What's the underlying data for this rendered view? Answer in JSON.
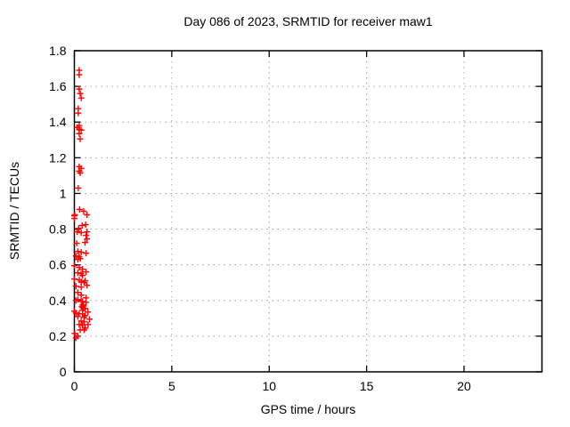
{
  "colors": {
    "marker": "#ff0000",
    "grid": "#a0a0a0",
    "axis": "#000000",
    "text": "#000000",
    "background": "#ffffff"
  },
  "chart_data": {
    "type": "scatter",
    "title": "Day 086 of 2023, SRMTID for receiver maw1",
    "xlabel": "GPS time / hours",
    "ylabel": "SRMTID / TECUs",
    "xlim": [
      0,
      24
    ],
    "ylim": [
      0,
      1.8
    ],
    "xticks": [
      0,
      5,
      10,
      15,
      20
    ],
    "xticklabels": [
      "0",
      "5",
      "10",
      "15",
      "20"
    ],
    "yticks": [
      0,
      0.2,
      0.4,
      0.6,
      0.8,
      1.0,
      1.2,
      1.4,
      1.6,
      1.8
    ],
    "yticklabels": [
      "0",
      "0.2",
      "0.4",
      "0.6",
      "0.8",
      "1",
      "1.2",
      "1.4",
      "1.6",
      "1.8"
    ],
    "grid": true,
    "legend_position": "none",
    "marker": "plus",
    "series": [
      {
        "name": "SRMTID",
        "color": "#ff0000",
        "points": [
          [
            0.25,
            1.69
          ],
          [
            0.25,
            1.665
          ],
          [
            0.25,
            1.585
          ],
          [
            0.3,
            1.56
          ],
          [
            0.35,
            1.535
          ],
          [
            0.2,
            1.475
          ],
          [
            0.2,
            1.45
          ],
          [
            0.25,
            1.38
          ],
          [
            0.15,
            1.37
          ],
          [
            0.25,
            1.36
          ],
          [
            0.35,
            1.355
          ],
          [
            0.25,
            1.335
          ],
          [
            0.3,
            1.305
          ],
          [
            0.25,
            1.15
          ],
          [
            0.35,
            1.14
          ],
          [
            0.25,
            1.125
          ],
          [
            0.3,
            1.115
          ],
          [
            0.2,
            1.03
          ],
          [
            0.27,
            0.91
          ],
          [
            0.48,
            0.9
          ],
          [
            0.65,
            0.88
          ],
          [
            0.02,
            0.88
          ],
          [
            0.0,
            0.875
          ],
          [
            0.0,
            0.86
          ],
          [
            0.58,
            0.825
          ],
          [
            0.4,
            0.82
          ],
          [
            0.22,
            0.805
          ],
          [
            0.14,
            0.785
          ],
          [
            0.65,
            0.785
          ],
          [
            0.35,
            0.78
          ],
          [
            0.6,
            0.765
          ],
          [
            0.65,
            0.745
          ],
          [
            0.55,
            0.725
          ],
          [
            0.12,
            0.72
          ],
          [
            0.18,
            0.675
          ],
          [
            0.35,
            0.67
          ],
          [
            0.6,
            0.665
          ],
          [
            0.08,
            0.65
          ],
          [
            0.25,
            0.645
          ],
          [
            0.3,
            0.635
          ],
          [
            0.18,
            0.63
          ],
          [
            0.0,
            0.595
          ],
          [
            0.25,
            0.585
          ],
          [
            0.42,
            0.575
          ],
          [
            0.6,
            0.56
          ],
          [
            0.18,
            0.555
          ],
          [
            0.35,
            0.55
          ],
          [
            0.42,
            0.54
          ],
          [
            0.0,
            0.52
          ],
          [
            0.25,
            0.515
          ],
          [
            0.56,
            0.51
          ],
          [
            0.35,
            0.505
          ],
          [
            0.5,
            0.5
          ],
          [
            0.65,
            0.485
          ],
          [
            0.08,
            0.48
          ],
          [
            0.35,
            0.475
          ],
          [
            0.18,
            0.445
          ],
          [
            0.35,
            0.43
          ],
          [
            0.6,
            0.415
          ],
          [
            0.18,
            0.405
          ],
          [
            0.08,
            0.4
          ],
          [
            0.35,
            0.395
          ],
          [
            0.42,
            0.395
          ],
          [
            0.6,
            0.39
          ],
          [
            0.42,
            0.375
          ],
          [
            0.47,
            0.37
          ],
          [
            0.38,
            0.365
          ],
          [
            0.44,
            0.36
          ],
          [
            0.47,
            0.355
          ],
          [
            0.56,
            0.355
          ],
          [
            0.42,
            0.345
          ],
          [
            0.0,
            0.34
          ],
          [
            0.7,
            0.335
          ],
          [
            0.08,
            0.33
          ],
          [
            0.25,
            0.325
          ],
          [
            0.42,
            0.325
          ],
          [
            0.56,
            0.315
          ],
          [
            0.18,
            0.31
          ],
          [
            0.5,
            0.305
          ],
          [
            0.78,
            0.295
          ],
          [
            0.35,
            0.285
          ],
          [
            0.5,
            0.28
          ],
          [
            0.25,
            0.265
          ],
          [
            0.7,
            0.265
          ],
          [
            0.42,
            0.26
          ],
          [
            0.56,
            0.245
          ],
          [
            0.3,
            0.235
          ],
          [
            0.5,
            0.235
          ],
          [
            0.02,
            0.215
          ],
          [
            0.18,
            0.2
          ],
          [
            0.08,
            0.19
          ]
        ]
      }
    ]
  }
}
